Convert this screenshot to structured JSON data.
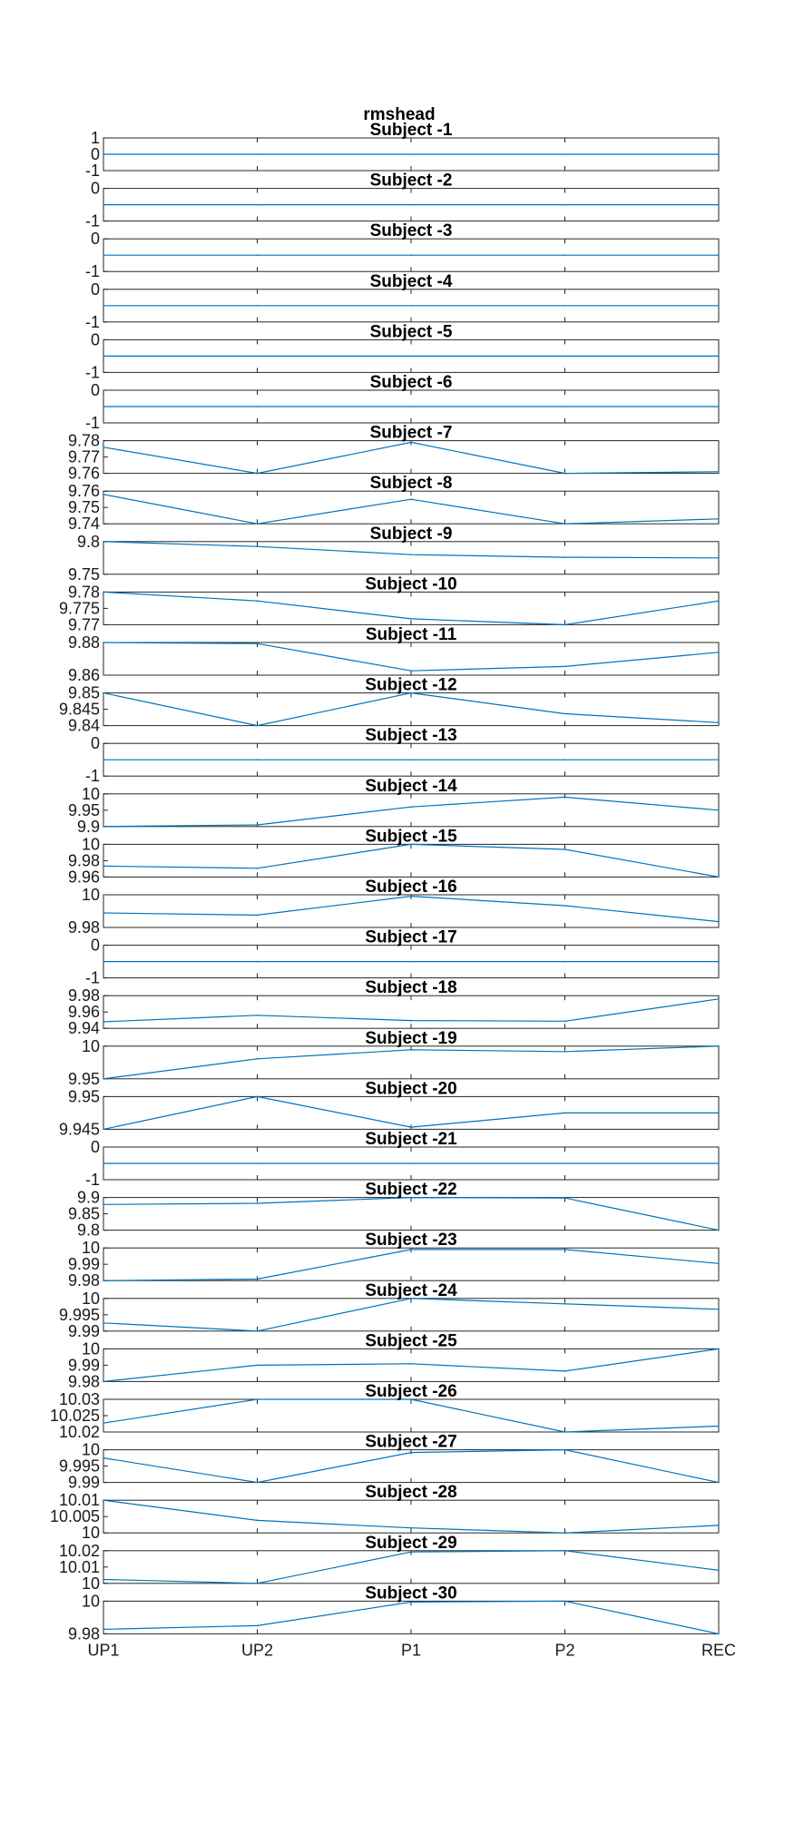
{
  "figure": {
    "title": "rmshead"
  },
  "colors": {
    "line": "#0072BD",
    "axes": "#262626",
    "text": "#1a1a1a",
    "background": "#ffffff"
  },
  "chart_data": {
    "type": "line",
    "title": "rmshead",
    "categories": [
      "UP1",
      "UP2",
      "P1",
      "P2",
      "REC"
    ],
    "grid": false,
    "subplots": [
      {
        "title": "Subject -1",
        "yticks": [
          "1",
          "0",
          "-1"
        ],
        "ylim": [
          -1,
          1
        ],
        "values": [
          0,
          0,
          0,
          0,
          0
        ]
      },
      {
        "title": "Subject -2",
        "yticks": [
          "0",
          "-1"
        ],
        "ylim": [
          -1,
          1
        ],
        "values": [
          0,
          0,
          0,
          0,
          0
        ]
      },
      {
        "title": "Subject -3",
        "yticks": [
          "0",
          "-1"
        ],
        "ylim": [
          -1,
          1
        ],
        "values": [
          0,
          0,
          0,
          0,
          0
        ]
      },
      {
        "title": "Subject -4",
        "yticks": [
          "0",
          "-1"
        ],
        "ylim": [
          -1,
          1
        ],
        "values": [
          0,
          0,
          0,
          0,
          0
        ]
      },
      {
        "title": "Subject -5",
        "yticks": [
          "0",
          "-1"
        ],
        "ylim": [
          -1,
          1
        ],
        "values": [
          0,
          0,
          0,
          0,
          0
        ]
      },
      {
        "title": "Subject -6",
        "yticks": [
          "0",
          "-1"
        ],
        "ylim": [
          -1,
          1
        ],
        "values": [
          0,
          0,
          0,
          0,
          0
        ]
      },
      {
        "title": "Subject -7",
        "yticks": [
          "9.78",
          "9.77",
          "9.76"
        ],
        "ylim": [
          9.76,
          9.78
        ],
        "values": [
          9.776,
          9.76,
          9.779,
          9.76,
          9.761
        ]
      },
      {
        "title": "Subject -8",
        "yticks": [
          "9.76",
          "9.75",
          "9.74"
        ],
        "ylim": [
          9.74,
          9.76
        ],
        "values": [
          9.758,
          9.74,
          9.755,
          9.74,
          9.743
        ]
      },
      {
        "title": "Subject -9",
        "yticks": [
          "9.8",
          "9.75"
        ],
        "ylim": [
          9.72,
          9.82
        ],
        "values": [
          9.82,
          9.805,
          9.78,
          9.772,
          9.77
        ]
      },
      {
        "title": "Subject -10",
        "yticks": [
          "9.78",
          "9.775",
          "9.77"
        ],
        "ylim": [
          9.769,
          9.78
        ],
        "values": [
          9.78,
          9.777,
          9.771,
          9.769,
          9.777
        ]
      },
      {
        "title": "Subject -11",
        "yticks": [
          "9.88",
          "9.86"
        ],
        "ylim": [
          9.85,
          9.88
        ],
        "values": [
          9.88,
          9.879,
          9.854,
          9.858,
          9.871
        ]
      },
      {
        "title": "Subject -12",
        "yticks": [
          "9.85",
          "9.845",
          "9.84"
        ],
        "ylim": [
          9.839,
          9.85
        ],
        "values": [
          9.85,
          9.839,
          9.85,
          9.843,
          9.84
        ]
      },
      {
        "title": "Subject -13",
        "yticks": [
          "0",
          "-1"
        ],
        "ylim": [
          -1,
          1
        ],
        "values": [
          0,
          0,
          0,
          0,
          0
        ]
      },
      {
        "title": "Subject -14",
        "yticks": [
          "10",
          "9.95",
          "9.9"
        ],
        "ylim": [
          9.9,
          10
        ],
        "values": [
          9.9,
          9.905,
          9.96,
          9.99,
          9.95
        ]
      },
      {
        "title": "Subject -15",
        "yticks": [
          "10",
          "9.98",
          "9.96"
        ],
        "ylim": [
          9.955,
          10
        ],
        "values": [
          9.97,
          9.967,
          10,
          9.993,
          9.955
        ]
      },
      {
        "title": "Subject -16",
        "yticks": [
          "10",
          "9.98"
        ],
        "ylim": [
          9.97,
          10.015
        ],
        "values": [
          9.99,
          9.987,
          10.013,
          10.0,
          9.978
        ]
      },
      {
        "title": "Subject -17",
        "yticks": [
          "0",
          "-1"
        ],
        "ylim": [
          -1,
          1
        ],
        "values": [
          0,
          0,
          0,
          0,
          0
        ]
      },
      {
        "title": "Subject -18",
        "yticks": [
          "9.98",
          "9.96",
          "9.94"
        ],
        "ylim": [
          9.93,
          9.98
        ],
        "values": [
          9.94,
          9.95,
          9.942,
          9.941,
          9.975
        ]
      },
      {
        "title": "Subject -19",
        "yticks": [
          "10",
          "9.95"
        ],
        "ylim": [
          9.93,
          10.02
        ],
        "values": [
          9.93,
          9.985,
          10.01,
          10.005,
          10.02
        ]
      },
      {
        "title": "Subject -20",
        "yticks": [
          "9.95",
          "9.945"
        ],
        "ylim": [
          9.9445,
          9.9525
        ],
        "values": [
          9.9445,
          9.9525,
          9.945,
          9.9485,
          9.9485
        ]
      },
      {
        "title": "Subject -21",
        "yticks": [
          "0",
          "-1"
        ],
        "ylim": [
          -1,
          1
        ],
        "values": [
          0,
          0,
          0,
          0,
          0
        ]
      },
      {
        "title": "Subject -22",
        "yticks": [
          "9.9",
          "9.85",
          "9.8"
        ],
        "ylim": [
          9.78,
          9.92
        ],
        "values": [
          9.89,
          9.895,
          9.92,
          9.918,
          9.78
        ]
      },
      {
        "title": "Subject -23",
        "yticks": [
          "10",
          "9.99",
          "9.98"
        ],
        "ylim": [
          9.98,
          10.001
        ],
        "values": [
          9.98,
          9.981,
          10.0,
          10.0,
          9.991
        ]
      },
      {
        "title": "Subject -24",
        "yticks": [
          "10",
          "9.995",
          "9.99"
        ],
        "ylim": [
          9.988,
          10.0
        ],
        "values": [
          9.991,
          9.988,
          10.0,
          9.998,
          9.996
        ]
      },
      {
        "title": "Subject -25",
        "yticks": [
          "10",
          "9.99",
          "9.98"
        ],
        "ylim": [
          9.978,
          10.0
        ],
        "values": [
          9.978,
          9.989,
          9.99,
          9.985,
          10.0
        ]
      },
      {
        "title": "Subject -26",
        "yticks": [
          "10.03",
          "10.025",
          "10.02"
        ],
        "ylim": [
          10.019,
          10.03
        ],
        "values": [
          10.022,
          10.03,
          10.03,
          10.019,
          10.021
        ]
      },
      {
        "title": "Subject -27",
        "yticks": [
          "10",
          "9.995",
          "9.99"
        ],
        "ylim": [
          9.989,
          10.001
        ],
        "values": [
          9.998,
          9.989,
          10.0,
          10.001,
          9.989
        ]
      },
      {
        "title": "Subject -28",
        "yticks": [
          "10.01",
          "10.005",
          "10"
        ],
        "ylim": [
          9.998,
          10.011
        ],
        "values": [
          10.011,
          10.003,
          10.0,
          9.998,
          10.001
        ]
      },
      {
        "title": "Subject -29",
        "yticks": [
          "10.02",
          "10.01",
          "10"
        ],
        "ylim": [
          9.996,
          10.021
        ],
        "values": [
          9.999,
          9.996,
          10.02,
          10.021,
          10.006
        ]
      },
      {
        "title": "Subject -30",
        "yticks": [
          "10",
          "9.98"
        ],
        "ylim": [
          9.969,
          10.005
        ],
        "values": [
          9.974,
          9.978,
          10.004,
          10.005,
          9.969
        ]
      }
    ]
  }
}
